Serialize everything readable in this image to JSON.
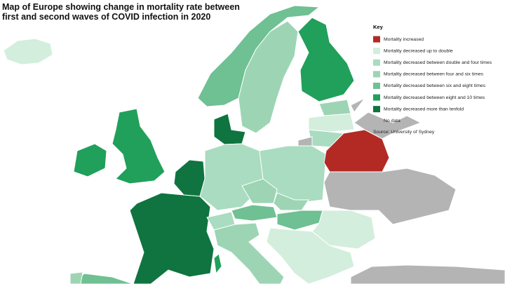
{
  "title": [
    "Map of Europe showing change in mortality rate between",
    "first and second waves of COVID infection in 2020"
  ],
  "legend": {
    "title": "Key",
    "items": [
      {
        "label": "Mortality increased",
        "color": "#b32a25"
      },
      {
        "label": "Mortality decreased up to double",
        "color": "#d3eedc"
      },
      {
        "label": "Mortality decreased between double and four times",
        "color": "#a9dcc0"
      },
      {
        "label": "Mortality decreased between four and six times",
        "color": "#9dd5b4"
      },
      {
        "label": "Mortality decreased between six and eight times",
        "color": "#6fc092"
      },
      {
        "label": "Mortality decreased between eight and 10 times",
        "color": "#20a05a"
      },
      {
        "label": "Mortality decreased more than tenfold",
        "color": "#0f7440"
      },
      {
        "label": "No data",
        "color": "#b4b4b4"
      }
    ]
  },
  "source": "Source: University of Sydney"
}
